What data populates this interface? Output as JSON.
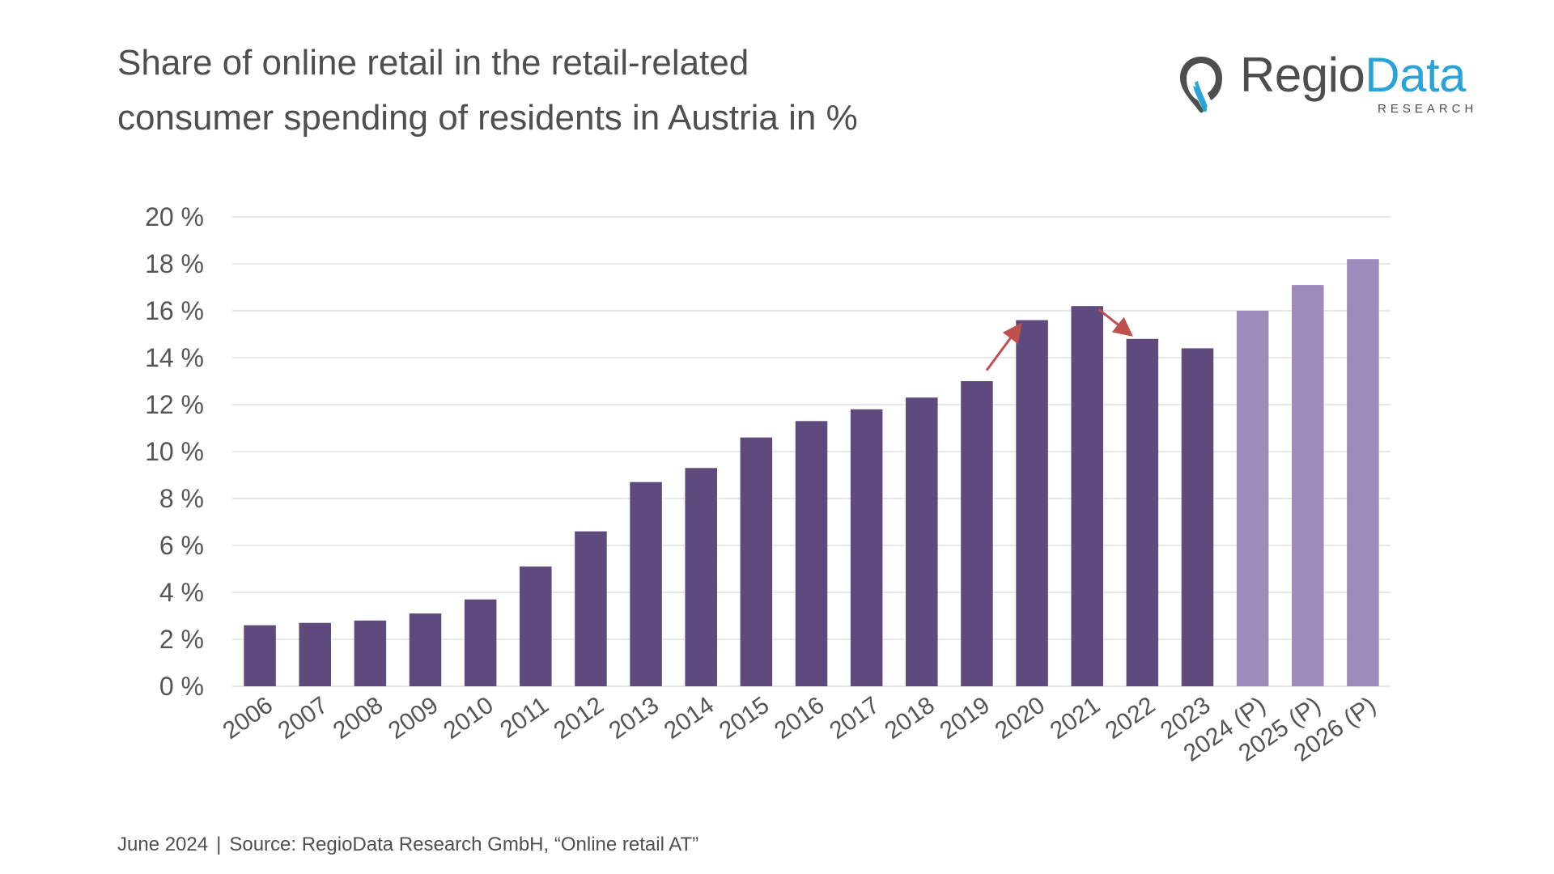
{
  "title_lines": [
    "Share of online retail in the retail-related",
    "consumer spending of residents in Austria in %"
  ],
  "logo": {
    "name_part1": "Regio",
    "name_part2": "Data",
    "sub": "RESEARCH",
    "icon": "map-pin-icon",
    "colors": {
      "text": "#4e4e4e",
      "accent": "#2aa3d9"
    }
  },
  "footer": {
    "date": "June 2024",
    "separator": "|",
    "source": "Source: RegioData Research GmbH, “Online retail AT”"
  },
  "chart_data": {
    "type": "bar",
    "categories": [
      "2006",
      "2007",
      "2008",
      "2009",
      "2010",
      "2011",
      "2012",
      "2013",
      "2014",
      "2015",
      "2016",
      "2017",
      "2018",
      "2019",
      "2020",
      "2021",
      "2022",
      "2023",
      "2024 (P)",
      "2025 (P)",
      "2026 (P)"
    ],
    "values": [
      2.6,
      2.7,
      2.8,
      3.1,
      3.7,
      5.1,
      6.6,
      8.7,
      9.3,
      10.6,
      11.3,
      11.8,
      12.3,
      13.0,
      15.6,
      16.2,
      14.8,
      14.4,
      16.0,
      17.1,
      18.2
    ],
    "projected": [
      false,
      false,
      false,
      false,
      false,
      false,
      false,
      false,
      false,
      false,
      false,
      false,
      false,
      false,
      false,
      false,
      false,
      false,
      true,
      true,
      true
    ],
    "ylim": [
      0,
      20
    ],
    "yticks": [
      0,
      2,
      4,
      6,
      8,
      10,
      12,
      14,
      16,
      18,
      20
    ],
    "ytick_labels": [
      "0 %",
      "2 %",
      "4 %",
      "6 %",
      "8 %",
      "10 %",
      "12 %",
      "14 %",
      "16 %",
      "18 %",
      "20 %"
    ],
    "grid": true,
    "colors": {
      "actual": "#5e4a7c",
      "projected": "#9d8bbb",
      "arrow": "#c0504d",
      "grid": "#d9d9d9"
    },
    "annotations": [
      {
        "type": "arrow-up",
        "between": [
          "2019",
          "2020"
        ]
      },
      {
        "type": "arrow-down",
        "between": [
          "2021",
          "2022"
        ]
      }
    ]
  }
}
